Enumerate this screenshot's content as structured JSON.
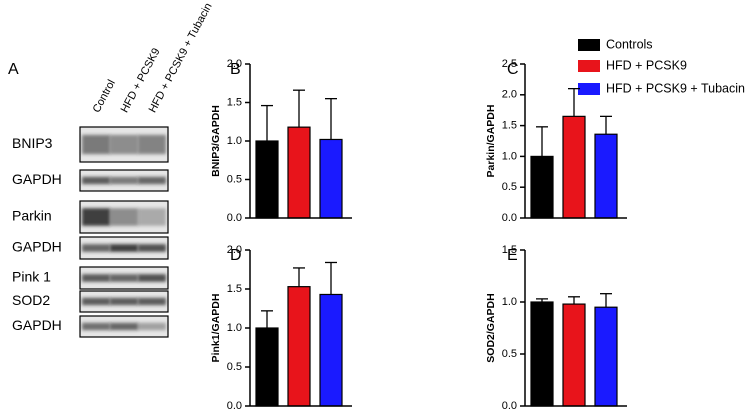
{
  "panel_labels": [
    "A",
    "B",
    "C",
    "D",
    "E"
  ],
  "blot": {
    "columns": [
      "Control",
      "HFD + PCSK9",
      "HFD + PCSK9 + Tubacin"
    ],
    "rows": [
      "BNIP3",
      "GAPDH",
      "Parkin",
      "GAPDH",
      "Pink 1",
      "SOD2",
      "GAPDH"
    ]
  },
  "chart_data": [
    {
      "type": "bar",
      "ylabel": "BNIP3/GAPDH",
      "ylim": [
        0,
        2
      ],
      "yticks": [
        {
          "value": 0,
          "label": "0.0"
        },
        {
          "value": 0.5,
          "label": "0.5"
        },
        {
          "value": 1,
          "label": "1.0"
        },
        {
          "value": 1.5,
          "label": "1.5"
        },
        {
          "value": 2,
          "label": "2.0"
        }
      ],
      "series": [
        {
          "name": "Controls",
          "color": "#000000",
          "values": [
            1.0
          ],
          "errors": [
            0.46
          ]
        },
        {
          "name": "HFD + PCSK9",
          "color": "#e8141b",
          "values": [
            1.18
          ],
          "errors": [
            0.48
          ]
        },
        {
          "name": "HFD + PCSK9 + Tubacin",
          "color": "#1a1aff",
          "values": [
            1.02
          ],
          "errors": [
            0.53
          ]
        }
      ]
    },
    {
      "type": "bar",
      "ylabel": "Parkin/GAPDH",
      "ylim": [
        0,
        2.5
      ],
      "yticks": [
        {
          "value": 0,
          "label": "0.0"
        },
        {
          "value": 0.5,
          "label": "0.5"
        },
        {
          "value": 1,
          "label": "1.0"
        },
        {
          "value": 1.5,
          "label": "1.5"
        },
        {
          "value": 2,
          "label": "2.0"
        },
        {
          "value": 2.5,
          "label": "2.5"
        }
      ],
      "series": [
        {
          "name": "Controls",
          "color": "#000000",
          "values": [
            1.0
          ],
          "errors": [
            0.48
          ]
        },
        {
          "name": "HFD + PCSK9",
          "color": "#e8141b",
          "values": [
            1.65
          ],
          "errors": [
            0.45
          ]
        },
        {
          "name": "HFD + PCSK9 + Tubacin",
          "color": "#1a1aff",
          "values": [
            1.36
          ],
          "errors": [
            0.29
          ]
        }
      ]
    },
    {
      "type": "bar",
      "ylabel": "Pink1/GAPDH",
      "ylim": [
        0,
        2
      ],
      "yticks": [
        {
          "value": 0,
          "label": "0.0"
        },
        {
          "value": 0.5,
          "label": "0.5"
        },
        {
          "value": 1,
          "label": "1.0"
        },
        {
          "value": 1.5,
          "label": "1.5"
        },
        {
          "value": 2,
          "label": "2.0"
        }
      ],
      "series": [
        {
          "name": "Controls",
          "color": "#000000",
          "values": [
            1.0
          ],
          "errors": [
            0.22
          ]
        },
        {
          "name": "HFD + PCSK9",
          "color": "#e8141b",
          "values": [
            1.53
          ],
          "errors": [
            0.24
          ]
        },
        {
          "name": "HFD + PCSK9 + Tubacin",
          "color": "#1a1aff",
          "values": [
            1.43
          ],
          "errors": [
            0.41
          ]
        }
      ]
    },
    {
      "type": "bar",
      "ylabel": "SOD2/GAPDH",
      "ylim": [
        0,
        1.5
      ],
      "yticks": [
        {
          "value": 0,
          "label": "0.0"
        },
        {
          "value": 0.5,
          "label": "0.5"
        },
        {
          "value": 1,
          "label": "1.0"
        },
        {
          "value": 1.5,
          "label": "1.5"
        }
      ],
      "series": [
        {
          "name": "Controls",
          "color": "#000000",
          "values": [
            1.0
          ],
          "errors": [
            0.03
          ]
        },
        {
          "name": "HFD + PCSK9",
          "color": "#e8141b",
          "values": [
            0.98
          ],
          "errors": [
            0.07
          ]
        },
        {
          "name": "HFD + PCSK9 + Tubacin",
          "color": "#1a1aff",
          "values": [
            0.95
          ],
          "errors": [
            0.13
          ]
        }
      ]
    }
  ]
}
